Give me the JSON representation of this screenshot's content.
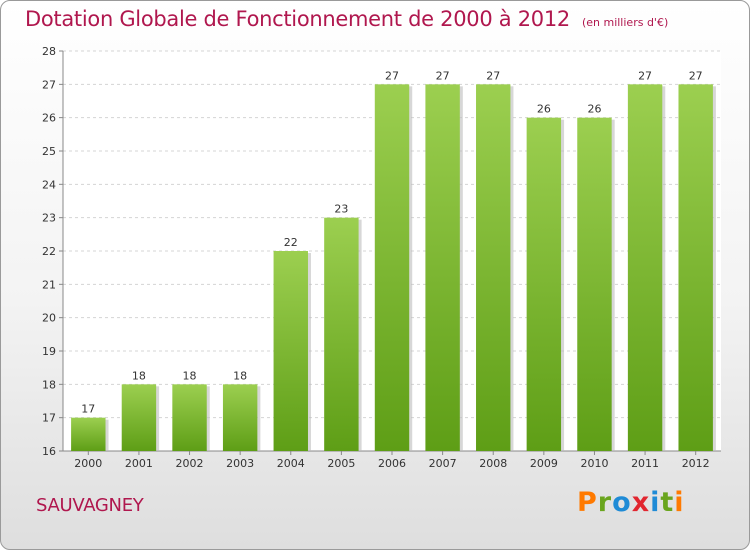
{
  "title": "Dotation Globale de Fonctionnement de 2000 à 2012",
  "subtitle": "(en milliers d'€)",
  "commune": "SAUVAGNEY",
  "logo": {
    "letters": [
      "P",
      "r",
      "o",
      "x",
      "i",
      "t",
      "i"
    ],
    "colors": [
      "#ff7a00",
      "#6aa51e",
      "#1f8bd6",
      "#e1262f",
      "#1f8bd6",
      "#6aa51e",
      "#ff7a00"
    ]
  },
  "colors": {
    "bar_light": "#9ccf50",
    "bar_dark": "#5e9e16",
    "title": "#b0174e"
  },
  "chart_data": {
    "type": "bar",
    "categories": [
      "2000",
      "2001",
      "2002",
      "2003",
      "2004",
      "2005",
      "2006",
      "2007",
      "2008",
      "2009",
      "2010",
      "2011",
      "2012"
    ],
    "values": [
      17,
      18,
      18,
      18,
      22,
      23,
      27,
      27,
      27,
      26,
      26,
      27,
      27
    ],
    "title": "Dotation Globale de Fonctionnement de 2000 à 2012",
    "ylim": [
      16,
      28
    ],
    "yticks": [
      16,
      17,
      18,
      19,
      20,
      21,
      22,
      23,
      24,
      25,
      26,
      27,
      28
    ],
    "grid": true,
    "legend": "none"
  }
}
